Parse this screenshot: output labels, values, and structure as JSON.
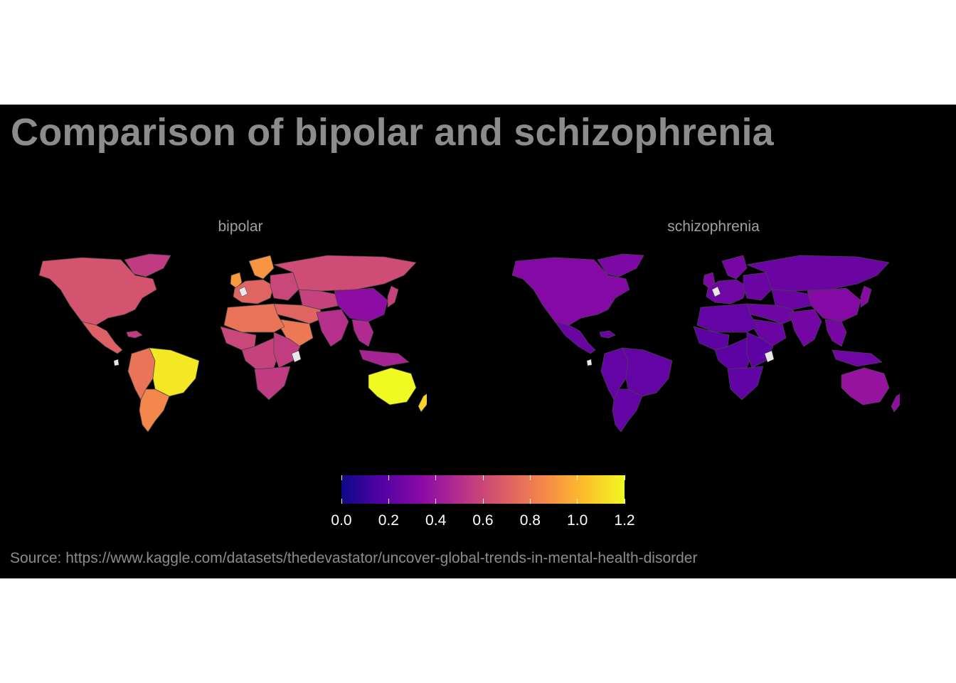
{
  "title": "Comparison of bipolar and schizophrenia",
  "source": "Source: https://www.kaggle.com/datasets/thedevastator/uncover-global-trends-in-mental-health-disorder",
  "chart_data": {
    "type": "choropleth",
    "colorscale": "plasma",
    "colorbar": {
      "range": [
        0,
        1.2
      ],
      "tick_labels": [
        "0.0",
        "0.2",
        "0.4",
        "0.6",
        "0.8",
        "1.0",
        "1.2"
      ],
      "placement": "bottom"
    },
    "missing_color": "#e8e8e8",
    "facets": [
      {
        "name": "bipolar",
        "regions": {
          "north_america": 0.65,
          "central_america": 0.7,
          "caribbean": 0.55,
          "south_america_andes": 0.78,
          "brazil": 1.15,
          "argentina_chile": 0.85,
          "western_europe": 0.72,
          "scandinavia": 0.9,
          "uk_ireland": 0.92,
          "russia": 0.62,
          "eastern_europe": 0.6,
          "middle_east": 0.72,
          "arabia": 0.8,
          "north_africa": 0.78,
          "west_africa": 0.6,
          "central_africa": 0.58,
          "east_africa": 0.56,
          "southern_africa": 0.55,
          "central_asia": 0.58,
          "south_asia": 0.5,
          "china": 0.35,
          "japan": 0.58,
          "southeast_asia": 0.48,
          "indonesia": 0.45,
          "australia": 1.2,
          "new_zealand": 1.1,
          "greenland": 0.55
        }
      },
      {
        "name": "schizophrenia",
        "regions": {
          "north_america": 0.32,
          "central_america": 0.24,
          "caribbean": 0.24,
          "south_america_andes": 0.22,
          "brazil": 0.22,
          "argentina_chile": 0.22,
          "western_europe": 0.26,
          "scandinavia": 0.28,
          "uk_ireland": 0.3,
          "russia": 0.24,
          "eastern_europe": 0.24,
          "middle_east": 0.25,
          "arabia": 0.24,
          "north_africa": 0.22,
          "west_africa": 0.2,
          "central_africa": 0.2,
          "east_africa": 0.2,
          "southern_africa": 0.21,
          "central_asia": 0.24,
          "south_asia": 0.27,
          "china": 0.32,
          "japan": 0.34,
          "southeast_asia": 0.28,
          "indonesia": 0.26,
          "australia": 0.38,
          "new_zealand": 0.36,
          "greenland": 0.3
        }
      }
    ]
  }
}
